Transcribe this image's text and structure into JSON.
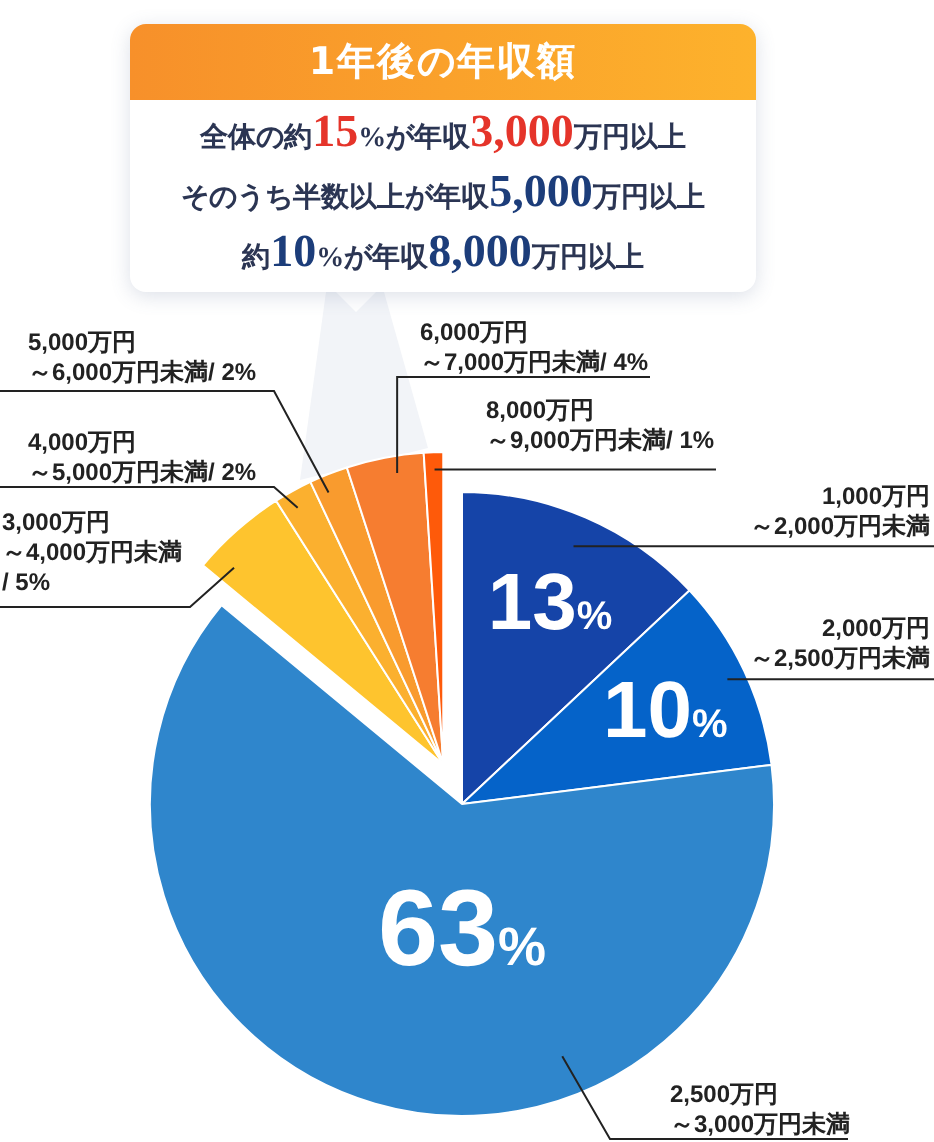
{
  "chart_data": {
    "type": "pie",
    "title": "1年後の年収額",
    "annotations": [
      "全体の約15%が年収3,000万円以上",
      "そのうち半数以上が年収5,000万円以上",
      "約10%が年収8,000万円以上"
    ],
    "categories": [
      "1,000万円～2,000万円未満",
      "2,000万円～2,500万円未満",
      "2,500万円～3,000万円未満",
      "3,000万円～4,000万円未満",
      "4,000万円～5,000万円未満",
      "5,000万円～6,000万円未満",
      "6,000万円～7,000万円未満",
      "8,000万円～9,000万円未満"
    ],
    "values": [
      13,
      10,
      63,
      5,
      2,
      2,
      4,
      1
    ],
    "colors": [
      "#1544a8",
      "#0563c9",
      "#2f86cc",
      "#fec42e",
      "#fbb02f",
      "#f99b2e",
      "#f67d30",
      "#fe5a0a"
    ],
    "value_labels": [
      "13%",
      "10%",
      "63%",
      "/ 5%",
      "/ 2%",
      "/ 2%",
      "/ 4%",
      "/ 1%"
    ]
  }
}
